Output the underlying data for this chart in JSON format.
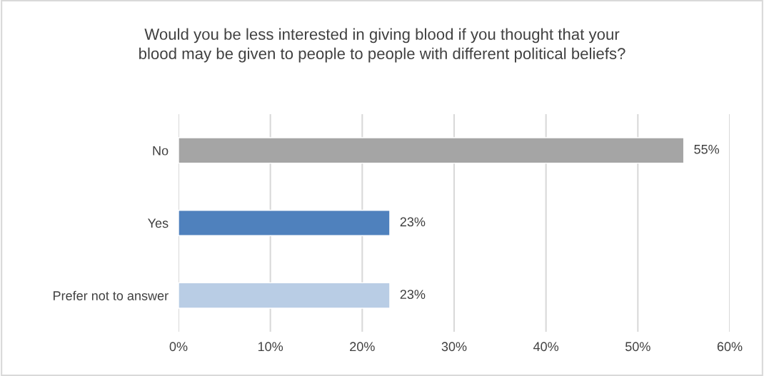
{
  "chart_data": {
    "type": "bar",
    "orientation": "horizontal",
    "title": "Would you be less interested in giving blood if you thought that your\nblood may be given to people to people with different political beliefs?",
    "categories": [
      "No",
      "Yes",
      "Prefer not to answer"
    ],
    "values": [
      55,
      23,
      23
    ],
    "colors": [
      "#a5a5a5",
      "#4f81bd",
      "#b9cde5"
    ],
    "value_labels": [
      "55%",
      "23%",
      "23%"
    ],
    "xlim": [
      0,
      60
    ],
    "xticks": [
      {
        "value": 0,
        "label": "0%"
      },
      {
        "value": 10,
        "label": "10%"
      },
      {
        "value": 20,
        "label": "20%"
      },
      {
        "value": 30,
        "label": "30%"
      },
      {
        "value": 40,
        "label": "40%"
      },
      {
        "value": 50,
        "label": "50%"
      },
      {
        "value": 60,
        "label": "60%"
      }
    ],
    "grid": "x",
    "legend": false
  }
}
